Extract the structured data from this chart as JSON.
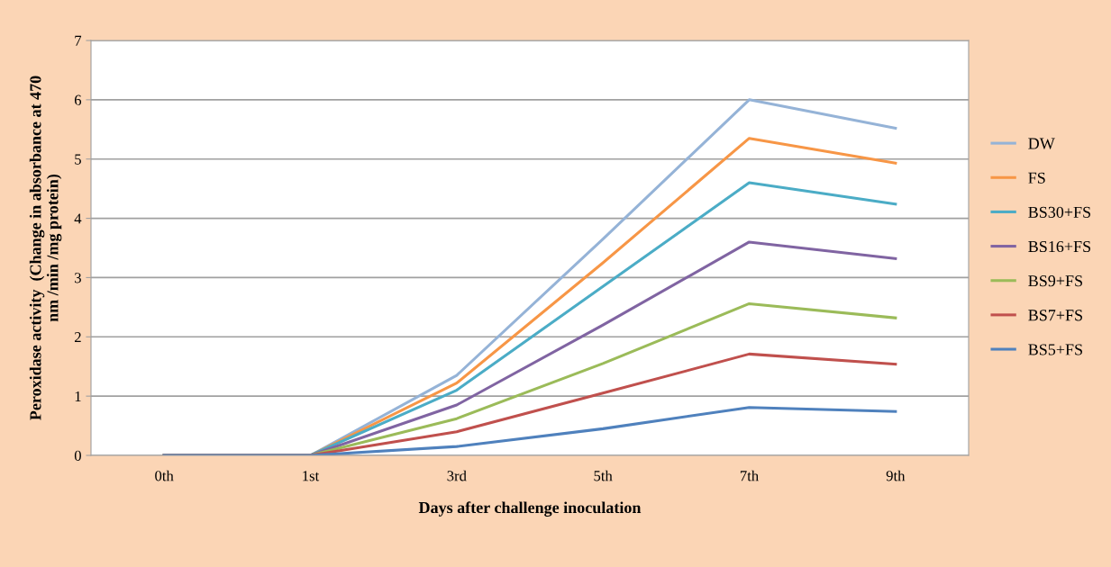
{
  "chart_data": {
    "type": "line",
    "xlabel": "Days after challenge inoculation",
    "ylabel": "Peroxidase activity  (Change in absorbance at 470\nnm /min /mg protein)",
    "categories": [
      "0th",
      "1st",
      "3rd",
      "5th",
      "7th",
      "9th"
    ],
    "series": [
      {
        "name": "DW",
        "color": "#95b3d7",
        "values": [
          0,
          0,
          1.35,
          3.65,
          6.0,
          5.52
        ]
      },
      {
        "name": "FS",
        "color": "#f79646",
        "values": [
          0,
          0,
          1.22,
          3.25,
          5.35,
          4.93
        ]
      },
      {
        "name": "BS30+FS",
        "color": "#4bacc6",
        "values": [
          0,
          0,
          1.1,
          2.85,
          4.6,
          4.24
        ]
      },
      {
        "name": "BS16+FS",
        "color": "#8064a2",
        "values": [
          0,
          0,
          0.85,
          2.2,
          3.6,
          3.32
        ]
      },
      {
        "name": "BS9+FS",
        "color": "#9bbb59",
        "values": [
          0,
          0,
          0.62,
          1.55,
          2.56,
          2.32
        ]
      },
      {
        "name": "BS7+FS",
        "color": "#c0504d",
        "values": [
          0,
          0,
          0.4,
          1.05,
          1.71,
          1.54
        ]
      },
      {
        "name": "BS5+FS",
        "color": "#4f81bd",
        "values": [
          0,
          0,
          0.15,
          0.45,
          0.81,
          0.74
        ]
      }
    ],
    "ylim": [
      0,
      7
    ],
    "yticks": [
      0,
      1,
      2,
      3,
      4,
      5,
      6,
      7
    ],
    "grid": "y",
    "legend": "right",
    "marker": "none",
    "line_style": "solid"
  }
}
